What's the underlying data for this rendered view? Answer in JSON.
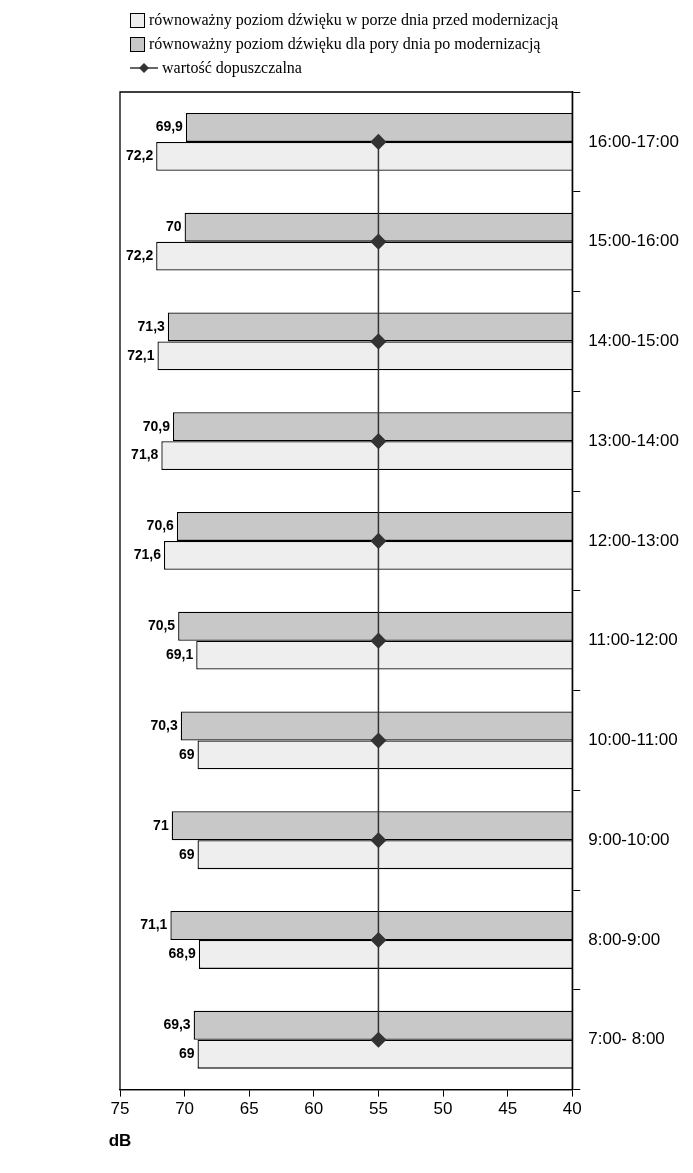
{
  "chart_data": {
    "type": "bar",
    "orientation": "horizontal",
    "xlabel": "dB",
    "categories": [
      "16:00-17:00",
      "15:00-16:00",
      "14:00-15:00",
      "13:00-14:00",
      "12:00-13:00",
      "11:00-12:00",
      "10:00-11:00",
      "9:00-10:00",
      "8:00-9:00",
      "7:00- 8:00"
    ],
    "series": [
      {
        "name": "równoważny poziom dźwięku dla pory dnia po modernizacją",
        "color": "#c8c8c8",
        "values": [
          69.9,
          70,
          71.3,
          70.9,
          70.6,
          70.5,
          70.3,
          71,
          71.1,
          69.3
        ],
        "value_labels": [
          "69,9",
          "70",
          "71,3",
          "70,9",
          "70,6",
          "70,5",
          "70,3",
          "71",
          "71,1",
          "69,3"
        ]
      },
      {
        "name": "równoważny poziom dźwięku w porze dnia przed modernizacją",
        "color": "#eeeeee",
        "values": [
          72.2,
          72.2,
          72.1,
          71.8,
          71.6,
          69.1,
          69,
          69,
          68.9,
          69
        ],
        "value_labels": [
          "72,2",
          "72,2",
          "72,1",
          "71,8",
          "71,6",
          "69,1",
          "69",
          "69",
          "68,9",
          "69"
        ]
      },
      {
        "name": "wartość dopuszczalna",
        "type": "line",
        "color": "#333333",
        "marker": "diamond",
        "values": [
          55,
          55,
          55,
          55,
          55,
          55,
          55,
          55,
          55,
          55
        ]
      }
    ],
    "xlim": [
      75,
      40
    ],
    "xticks": [
      75,
      70,
      65,
      60,
      55,
      50,
      45,
      40
    ],
    "grid": false,
    "legend": "top left"
  }
}
